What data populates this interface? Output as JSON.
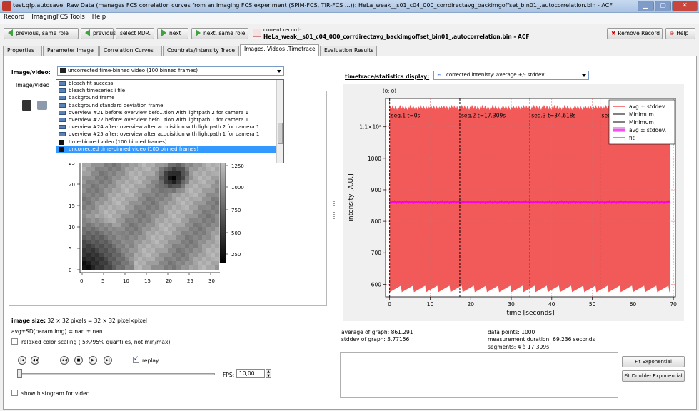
{
  "window": {
    "title": "test.qfp.autosave: Raw Data (manages FCS correlation curves from an imaging FCS experiment (SPIM-FCS, TIR-FCS ...)): HeLa_weak__s01_c04_000_corrdirectavg_backimgoffset_bin01_.autocorrelation.bin - ACF"
  },
  "menu": [
    "Record",
    "ImagingFCS Tools",
    "Help"
  ],
  "toolbar": {
    "prev_same": "previous, same role",
    "prev": "previous",
    "select": "select RDR.",
    "next": "next",
    "next_same": "next, same role",
    "current_label": "current record:",
    "current_value": "HeLa_weak__s01_c04_000_corrdirectavg_backimgoffset_bin01_.autocorrelation.bin - ACF",
    "remove": "Remove Record",
    "help": "Help"
  },
  "tabs": [
    "Properties",
    "Parameter Image",
    "Correlation Curves",
    "Countrate/Intensity Trace",
    "Images, Videos ,Timetrace",
    "Evaluation Results"
  ],
  "left": {
    "image_video_label": "image/video:",
    "combo_value": "uncorrected time-binned video (100 binned frames)",
    "inner_tab": "Image/Video",
    "dropdown": [
      "bleach fit success",
      "bleach timeseries i file",
      "background frame",
      "background standard deviation frame",
      "overview #21 before: overview befo...tion with lightpath 2 for camera 1",
      "overview #22 before: overview befo...tion with lightpath 1 for camera 1",
      "overview #24 after: overview after acquisition with lightpath 2 for camera 1",
      "overview #25 after: overview after acquisition with lightpath 1 for camera 1",
      "time-binned video (100 binned frames)",
      "uncorrected time-binned video (100 binned frames)"
    ],
    "image_size_label": "image size:",
    "image_size_value": "32 × 32 pixels = 32 × 32 pixel×pixel",
    "avg_sd": "avg±SD(param img) = nan ± nan",
    "relaxed": "relaxed color scaling ( 5%/95% quantiles, not min/max)",
    "replay": "replay",
    "fps_label": "FPS:",
    "fps_value": "10,00",
    "histogram": "show histogram for video",
    "colorbar_ticks": [
      "1250",
      "1000",
      "750",
      "500",
      "250"
    ],
    "x_ticks": [
      "0",
      "5",
      "10",
      "15",
      "20",
      "25",
      "30"
    ],
    "y_ticks": [
      "25",
      "20",
      "15",
      "10",
      "5",
      "0"
    ]
  },
  "right": {
    "label": "timetrace/statistics display:",
    "combo_value": "corrected intenisty: average +/- stddev.",
    "origin": "(0; 0)",
    "average": "average of graph: 861.291",
    "stddev": "stddev of graph: 3.77156",
    "points": "data points: 1000",
    "duration": "measurement duration: 69.236 seconds",
    "segments": "segments: 4 à 17.309s",
    "fit_exp": "Fit Exponential",
    "fit_dexp": "Fit Double- Exponential"
  },
  "chart_data": {
    "type": "area",
    "xlabel": "time [seconds]",
    "ylabel": "intensity [A.U.]",
    "xlim": [
      -1,
      70.5
    ],
    "ylim": [
      560,
      1190
    ],
    "x_ticks": [
      0,
      10,
      20,
      30,
      40,
      50,
      60,
      70
    ],
    "y_ticks": [
      600,
      700,
      800,
      900,
      1000,
      1100
    ],
    "y_tick_labels": [
      "600",
      "700",
      "800",
      "900",
      "1000",
      "1.1×10³"
    ],
    "band_top": 1170,
    "band_bottom": 575,
    "mean": 861.291,
    "segments": [
      {
        "start": 0,
        "label": "seg.1 t=0s"
      },
      {
        "start": 17.309,
        "label": "seg.2 t=17.309s"
      },
      {
        "start": 34.618,
        "label": "seg.3 t=34.618s"
      },
      {
        "start": 51.927,
        "label": "seg.4 t=51.927s"
      }
    ],
    "legend": [
      "avg ± stddev",
      "Minimum",
      "Minimum",
      "avg ± stddev.",
      "fit"
    ],
    "colors": {
      "band": "#f25a5a",
      "avg": "#e60000",
      "fit": "#ff00ff",
      "min": "#000000"
    }
  }
}
